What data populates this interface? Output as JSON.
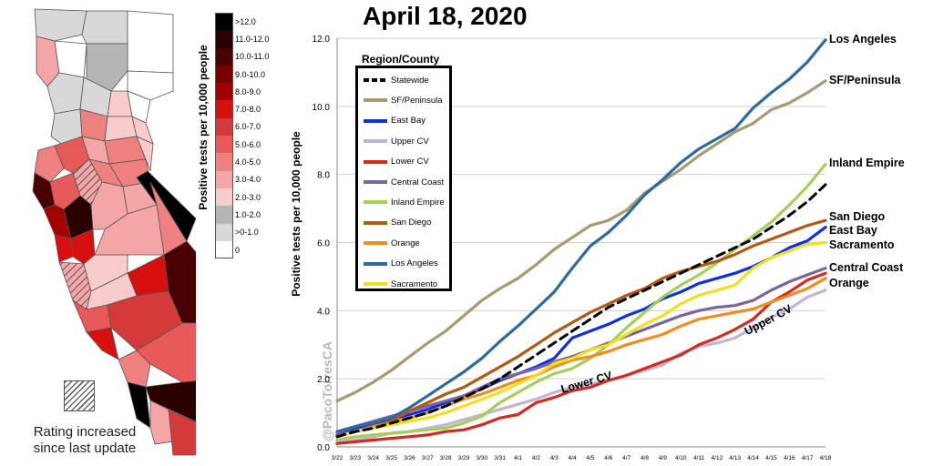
{
  "map": {
    "legend_title": "Positive tests per 10,000 people",
    "legend": [
      {
        "label": ">12.0",
        "color": "#000000"
      },
      {
        "label": "11.0-12.0",
        "color": "#2a0000"
      },
      {
        "label": "10.0-11.0",
        "color": "#4a0101"
      },
      {
        "label": "9.0-10.0",
        "color": "#7a0000"
      },
      {
        "label": "8.0-9.0",
        "color": "#a50000"
      },
      {
        "label": "7.0-8.0",
        "color": "#d80f0f"
      },
      {
        "label": "6.0-7.0",
        "color": "#d43a3a"
      },
      {
        "label": "5.0-6.0",
        "color": "#e85a5a"
      },
      {
        "label": "4.0-5.0",
        "color": "#ef8080"
      },
      {
        "label": "3.0-4.0",
        "color": "#f4a6a6"
      },
      {
        "label": "2.0-3.0",
        "color": "#f8cccc"
      },
      {
        "label": "1.0-2.0",
        "color": "#b5b5b5"
      },
      {
        "label": ">0-1.0",
        "color": "#d8d8d8"
      },
      {
        "label": "0",
        "color": "#ffffff"
      }
    ],
    "hatch_note": "Rating increased since last update"
  },
  "watermark": "@PacoTorresCA",
  "chart_data": {
    "type": "line",
    "title": "April 18, 2020",
    "xlabel": "",
    "ylabel": "Positive tests per 10,000 people",
    "ylim": [
      0,
      12
    ],
    "yticks": [
      "0.0",
      "2.0",
      "4.0",
      "6.0",
      "8.0",
      "10.0",
      "12.0"
    ],
    "legend_title": "Region/County",
    "legend_position": "top-left",
    "categories": [
      "3/22",
      "3/23",
      "3/24",
      "3/25",
      "3/26",
      "3/27",
      "3/28",
      "3/29",
      "3/30",
      "3/31",
      "4/1",
      "4/2",
      "4/3",
      "4/4",
      "4/5",
      "4/6",
      "4/7",
      "4/8",
      "4/9",
      "4/10",
      "4/11",
      "4/12",
      "4/13",
      "4/14",
      "4/15",
      "4/16",
      "4/17",
      "4/18"
    ],
    "series": [
      {
        "name": "Statewide",
        "color": "#000000",
        "dashed": true,
        "values": [
          0.3,
          0.45,
          0.55,
          0.7,
          0.85,
          1.0,
          1.2,
          1.45,
          1.7,
          2.0,
          2.35,
          2.7,
          3.05,
          3.4,
          3.75,
          4.1,
          4.35,
          4.6,
          4.85,
          5.1,
          5.35,
          5.6,
          5.85,
          6.1,
          6.45,
          6.8,
          7.2,
          7.7
        ]
      },
      {
        "name": "SF/Peninsula",
        "color": "#a89a73",
        "values": [
          1.35,
          1.6,
          1.9,
          2.25,
          2.65,
          3.05,
          3.4,
          3.85,
          4.3,
          4.65,
          4.95,
          5.35,
          5.8,
          6.15,
          6.5,
          6.65,
          6.95,
          7.45,
          7.8,
          8.15,
          8.55,
          8.9,
          9.25,
          9.5,
          9.9,
          10.1,
          10.4,
          10.75
        ]
      },
      {
        "name": "East Bay",
        "color": "#1030e0",
        "values": [
          0.35,
          0.55,
          0.65,
          0.8,
          0.95,
          1.1,
          1.3,
          1.5,
          1.7,
          1.95,
          2.15,
          2.35,
          2.6,
          3.2,
          3.4,
          3.6,
          3.85,
          4.05,
          4.35,
          4.55,
          4.8,
          4.95,
          5.1,
          5.3,
          5.55,
          5.85,
          6.05,
          6.45
        ]
      },
      {
        "name": "Upper CV",
        "color": "#c3b4d8",
        "values": [
          0.15,
          0.2,
          0.3,
          0.4,
          0.45,
          0.55,
          0.65,
          0.8,
          0.95,
          1.1,
          1.25,
          1.4,
          1.6,
          1.75,
          1.85,
          1.95,
          2.1,
          2.25,
          2.4,
          2.75,
          2.95,
          3.05,
          3.2,
          3.5,
          3.8,
          4.05,
          4.4,
          4.6
        ]
      },
      {
        "name": "Lower CV",
        "color": "#d42a20",
        "values": [
          0.1,
          0.15,
          0.2,
          0.25,
          0.3,
          0.35,
          0.45,
          0.5,
          0.65,
          0.85,
          0.95,
          1.3,
          1.45,
          1.65,
          1.75,
          1.95,
          2.1,
          2.3,
          2.5,
          2.7,
          3.0,
          3.2,
          3.45,
          3.75,
          4.25,
          4.55,
          4.9,
          5.1
        ]
      },
      {
        "name": "Central Coast",
        "color": "#7a649c",
        "values": [
          0.4,
          0.6,
          0.75,
          0.9,
          1.05,
          1.2,
          1.35,
          1.5,
          1.75,
          2.0,
          2.15,
          2.3,
          2.5,
          2.65,
          2.85,
          3.05,
          3.25,
          3.45,
          3.65,
          3.85,
          4.0,
          4.1,
          4.15,
          4.3,
          4.6,
          4.85,
          5.05,
          5.25
        ]
      },
      {
        "name": "Inland Empire",
        "color": "#a4d05a",
        "values": [
          0.2,
          0.3,
          0.35,
          0.4,
          0.45,
          0.5,
          0.55,
          0.7,
          0.9,
          1.3,
          1.6,
          1.9,
          2.15,
          2.3,
          2.6,
          3.0,
          3.5,
          3.95,
          4.4,
          4.75,
          5.05,
          5.4,
          5.8,
          6.2,
          6.6,
          7.1,
          7.65,
          8.3
        ]
      },
      {
        "name": "San Diego",
        "color": "#b35910",
        "values": [
          0.3,
          0.45,
          0.6,
          0.75,
          1.05,
          1.3,
          1.55,
          1.75,
          2.05,
          2.35,
          2.65,
          3.0,
          3.35,
          3.65,
          3.95,
          4.2,
          4.45,
          4.65,
          4.95,
          5.15,
          5.3,
          5.45,
          5.65,
          5.9,
          6.1,
          6.3,
          6.5,
          6.65
        ]
      },
      {
        "name": "Orange",
        "color": "#f28c1e",
        "values": [
          0.3,
          0.45,
          0.6,
          0.7,
          0.85,
          1.0,
          1.2,
          1.4,
          1.55,
          1.75,
          1.95,
          2.1,
          2.35,
          2.55,
          2.65,
          2.8,
          3.0,
          3.15,
          3.3,
          3.55,
          3.75,
          3.85,
          3.95,
          4.05,
          4.25,
          4.45,
          4.65,
          4.95
        ]
      },
      {
        "name": "Los Angeles",
        "color": "#2e6aa0",
        "values": [
          0.45,
          0.6,
          0.7,
          0.85,
          1.15,
          1.5,
          1.85,
          2.2,
          2.6,
          3.1,
          3.55,
          4.05,
          4.55,
          5.25,
          5.9,
          6.3,
          6.8,
          7.4,
          7.85,
          8.35,
          8.75,
          9.05,
          9.35,
          9.95,
          10.4,
          10.8,
          11.3,
          11.95
        ]
      },
      {
        "name": "Sacramento",
        "color": "#f2e01f",
        "values": [
          0.3,
          0.45,
          0.55,
          0.65,
          0.75,
          0.85,
          1.0,
          1.2,
          1.4,
          1.6,
          1.85,
          2.1,
          2.45,
          2.6,
          2.85,
          3.0,
          3.3,
          3.6,
          3.85,
          4.2,
          4.45,
          4.6,
          4.75,
          5.25,
          5.55,
          5.75,
          5.95,
          6.0
        ]
      }
    ],
    "end_labels": [
      {
        "text": "Los Angeles",
        "value": 11.95
      },
      {
        "text": "SF/Peninsula",
        "value": 10.75
      },
      {
        "text": "Inland Empire",
        "value": 8.3
      },
      {
        "text": "San Diego",
        "value": 6.65
      },
      {
        "text": "East Bay",
        "value": 6.3
      },
      {
        "text": "Sacramento",
        "value": 5.95
      },
      {
        "text": "Central Coast",
        "value": 5.25
      },
      {
        "text": "Orange",
        "value": 4.9
      }
    ],
    "annotations": [
      {
        "text": "Lower CV"
      },
      {
        "text": "Upper CV"
      }
    ],
    "grid": true
  }
}
